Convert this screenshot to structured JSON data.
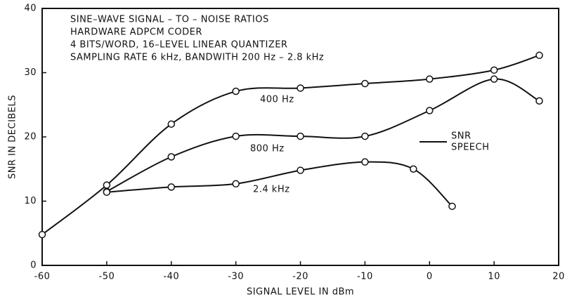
{
  "chart_data": {
    "type": "line",
    "title_lines": [
      "SINE–WAVE SIGNAL – TO – NOISE RATIOS",
      "HARDWARE ADPCM CODER",
      "4 BITS/WORD, 16–LEVEL LINEAR QUANTIZER",
      "SAMPLING RATE 6 kHz, BANDWITH 200 Hz – 2.8 kHz"
    ],
    "x_label": "SIGNAL LEVEL IN dBm",
    "y_label": "SNR IN DECIBELS",
    "xlim": [
      -60,
      20
    ],
    "xticks": [
      -60,
      -50,
      -40,
      -30,
      -20,
      -10,
      0,
      10,
      20
    ],
    "ylim": [
      0,
      40
    ],
    "yticks": [
      0,
      10,
      20,
      30,
      40
    ],
    "color": "#111111",
    "series": [
      {
        "name": "400 Hz",
        "x": [
          -60,
          -50,
          -40,
          -30,
          -20,
          -10,
          0,
          10,
          17
        ],
        "values": [
          4.8,
          12.5,
          22,
          27.1,
          27.6,
          28.3,
          29,
          30.4,
          32.7
        ]
      },
      {
        "name": "800 Hz",
        "x": [
          -50,
          -40,
          -30,
          -20,
          -10,
          0,
          10,
          17
        ],
        "values": [
          11.5,
          16.9,
          20.1,
          20.1,
          20.1,
          24.1,
          29,
          25.6
        ]
      },
      {
        "name": "2.4 kHz",
        "x": [
          -50,
          -40,
          -30,
          -20,
          -10,
          -2.5,
          3.5
        ],
        "values": [
          11.4,
          12.2,
          12.7,
          14.8,
          16.1,
          15,
          9.2
        ]
      }
    ],
    "annotation_lines": [
      "SNR",
      "SPEECH"
    ]
  }
}
